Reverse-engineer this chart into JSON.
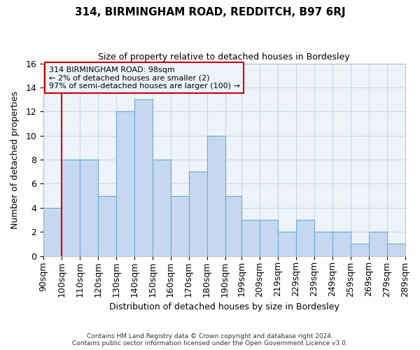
{
  "title": "314, BIRMINGHAM ROAD, REDDITCH, B97 6RJ",
  "subtitle": "Size of property relative to detached houses in Bordesley",
  "xlabel": "Distribution of detached houses by size in Bordesley",
  "ylabel": "Number of detached properties",
  "bar_left_edges": [
    90,
    100,
    110,
    120,
    130,
    140,
    150,
    160,
    170,
    180,
    190,
    199,
    209,
    219,
    229,
    239,
    249,
    259,
    269,
    279
  ],
  "bar_widths": [
    10,
    10,
    10,
    10,
    10,
    10,
    10,
    10,
    10,
    10,
    9,
    10,
    10,
    10,
    10,
    10,
    10,
    10,
    10,
    10
  ],
  "bar_heights": [
    4,
    8,
    8,
    5,
    12,
    13,
    8,
    5,
    7,
    10,
    5,
    3,
    3,
    2,
    3,
    2,
    2,
    1,
    2,
    1
  ],
  "bar_color": "#c5d8ef",
  "bar_edge_color": "#6aaad4",
  "grid_color": "#c8d8e8",
  "background_color": "#ffffff",
  "plot_bg_color": "#eef3fa",
  "marker_x": 100,
  "marker_line_color": "#cc0000",
  "annotation_box_edge_color": "#cc0000",
  "annotation_text_line1": "314 BIRMINGHAM ROAD: 98sqm",
  "annotation_text_line2": "← 2% of detached houses are smaller (2)",
  "annotation_text_line3": "97% of semi-detached houses are larger (100) →",
  "ylim": [
    0,
    16
  ],
  "xlim": [
    90,
    289
  ],
  "xtick_labels": [
    "90sqm",
    "100sqm",
    "110sqm",
    "120sqm",
    "130sqm",
    "140sqm",
    "150sqm",
    "160sqm",
    "170sqm",
    "180sqm",
    "190sqm",
    "199sqm",
    "209sqm",
    "219sqm",
    "229sqm",
    "239sqm",
    "249sqm",
    "259sqm",
    "269sqm",
    "279sqm",
    "289sqm"
  ],
  "xtick_positions": [
    90,
    100,
    110,
    120,
    130,
    140,
    150,
    160,
    170,
    180,
    190,
    199,
    209,
    219,
    229,
    239,
    249,
    259,
    269,
    279,
    289
  ],
  "footer_line1": "Contains HM Land Registry data © Crown copyright and database right 2024.",
  "footer_line2": "Contains public sector information licensed under the Open Government Licence v3.0."
}
